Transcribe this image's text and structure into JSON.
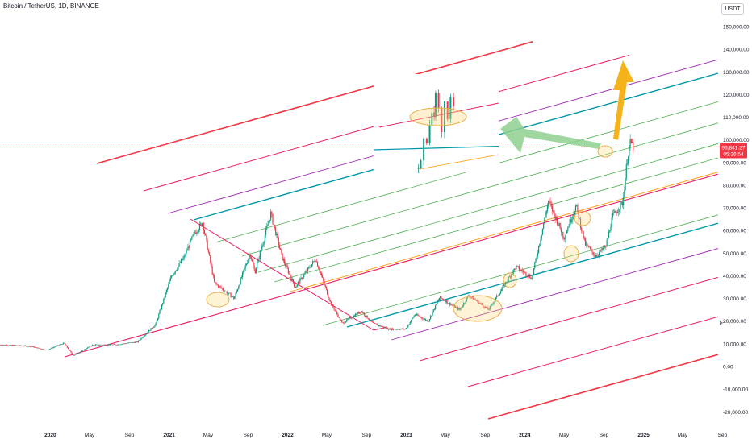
{
  "header": {
    "symbol_title": "Bitcoin / TetherUS, 1D, BINANCE",
    "currency": "USDT"
  },
  "price_tag": {
    "price": "96,841.27",
    "countdown": "05:36:54",
    "color": "#f23645"
  },
  "chart_data": {
    "type": "candlestick",
    "title": "Bitcoin / TetherUS, 1D, BINANCE",
    "xlabel": "",
    "ylabel": "",
    "ylim": [
      -25000,
      160000
    ],
    "xlim": [
      "2019-07-30",
      "2025-12-01"
    ],
    "current_price": 96841.27,
    "y_ticks": [
      {
        "value": -20000,
        "label": "-20,000.00"
      },
      {
        "value": -10000,
        "label": "-10,000.00"
      },
      {
        "value": 0,
        "label": "0.00"
      },
      {
        "value": 10000,
        "label": "10,000.00"
      },
      {
        "value": 20000,
        "label": "20,000.00"
      },
      {
        "value": 30000,
        "label": "30,000.00"
      },
      {
        "value": 40000,
        "label": "40,000.00"
      },
      {
        "value": 50000,
        "label": "50,000.00"
      },
      {
        "value": 60000,
        "label": "60,000.00"
      },
      {
        "value": 70000,
        "label": "70,000.00"
      },
      {
        "value": 80000,
        "label": "80,000.00"
      },
      {
        "value": 90000,
        "label": "90,000.00"
      },
      {
        "value": 100000,
        "label": "100,000.00"
      },
      {
        "value": 110000,
        "label": "110,000.00"
      },
      {
        "value": 120000,
        "label": "120,000.00"
      },
      {
        "value": 130000,
        "label": "130,000.00"
      },
      {
        "value": 140000,
        "label": "140,000.00"
      },
      {
        "value": 150000,
        "label": "150,000.00"
      }
    ],
    "x_ticks": [
      {
        "date": "2020-01-01",
        "label": "2020",
        "bold": true
      },
      {
        "date": "2020-05-01",
        "label": "May",
        "bold": false
      },
      {
        "date": "2020-09-01",
        "label": "Sep",
        "bold": false
      },
      {
        "date": "2021-01-01",
        "label": "2021",
        "bold": true
      },
      {
        "date": "2021-05-01",
        "label": "May",
        "bold": false
      },
      {
        "date": "2021-09-01",
        "label": "Sep",
        "bold": false
      },
      {
        "date": "2022-01-01",
        "label": "2022",
        "bold": true
      },
      {
        "date": "2022-05-01",
        "label": "May",
        "bold": false
      },
      {
        "date": "2022-09-01",
        "label": "Sep",
        "bold": false
      },
      {
        "date": "2023-01-01",
        "label": "2023",
        "bold": true
      },
      {
        "date": "2023-05-01",
        "label": "May",
        "bold": false
      },
      {
        "date": "2023-09-01",
        "label": "Sep",
        "bold": false
      },
      {
        "date": "2024-01-01",
        "label": "2024",
        "bold": true
      },
      {
        "date": "2024-05-01",
        "label": "May",
        "bold": false
      },
      {
        "date": "2024-09-01",
        "label": "Sep",
        "bold": false
      },
      {
        "date": "2025-01-01",
        "label": "2025",
        "bold": true
      },
      {
        "date": "2025-05-01",
        "label": "May",
        "bold": false
      },
      {
        "date": "2025-09-01",
        "label": "Sep",
        "bold": false
      }
    ],
    "price_path": [
      [
        "2019-07-30",
        9600
      ],
      [
        "2019-09-15",
        9300
      ],
      [
        "2019-11-01",
        8900
      ],
      [
        "2019-12-20",
        7200
      ],
      [
        "2020-02-12",
        10300
      ],
      [
        "2020-03-12",
        4800
      ],
      [
        "2020-05-10",
        9500
      ],
      [
        "2020-07-25",
        9700
      ],
      [
        "2020-09-25",
        10800
      ],
      [
        "2020-11-20",
        18500
      ],
      [
        "2021-01-08",
        40000
      ],
      [
        "2021-02-15",
        48000
      ],
      [
        "2021-03-20",
        59000
      ],
      [
        "2021-04-14",
        63500
      ],
      [
        "2021-05-20",
        37000
      ],
      [
        "2021-07-20",
        30000
      ],
      [
        "2021-09-07",
        50000
      ],
      [
        "2021-09-22",
        41500
      ],
      [
        "2021-11-10",
        67500
      ],
      [
        "2021-12-15",
        48000
      ],
      [
        "2022-01-24",
        35000
      ],
      [
        "2022-03-28",
        47500
      ],
      [
        "2022-05-12",
        28500
      ],
      [
        "2022-06-18",
        19000
      ],
      [
        "2022-08-15",
        24500
      ],
      [
        "2022-09-20",
        19000
      ],
      [
        "2022-11-09",
        16500
      ],
      [
        "2022-12-30",
        16500
      ],
      [
        "2023-01-28",
        23000
      ],
      [
        "2023-03-10",
        20000
      ],
      [
        "2023-04-14",
        30500
      ],
      [
        "2023-06-15",
        25000
      ],
      [
        "2023-07-13",
        31500
      ],
      [
        "2023-09-11",
        25000
      ],
      [
        "2023-10-24",
        34500
      ],
      [
        "2023-12-05",
        44000
      ],
      [
        "2024-01-23",
        39000
      ],
      [
        "2024-03-14",
        73000
      ],
      [
        "2024-05-01",
        57000
      ],
      [
        "2024-06-07",
        71000
      ],
      [
        "2024-07-05",
        54000
      ],
      [
        "2024-08-05",
        49000
      ],
      [
        "2024-09-06",
        52500
      ],
      [
        "2024-09-27",
        66000
      ],
      [
        "2024-10-29",
        72500
      ],
      [
        "2024-11-13",
        93000
      ],
      [
        "2024-11-22",
        99000
      ],
      [
        "2024-12-02",
        96841
      ]
    ],
    "zoom_inset": {
      "ylim": [
        86000,
        123000
      ],
      "xlim": [
        "2024-11-01",
        "2025-01-05"
      ],
      "price_path": [
        [
          "2024-11-05",
          86500
        ],
        [
          "2024-11-08",
          90000
        ],
        [
          "2024-11-12",
          100000
        ],
        [
          "2024-11-16",
          98000
        ],
        [
          "2024-11-20",
          106000
        ],
        [
          "2024-11-23",
          112000
        ],
        [
          "2024-11-26",
          110000
        ],
        [
          "2024-11-28",
          121000
        ],
        [
          "2024-12-02",
          114000
        ],
        [
          "2024-12-06",
          103000
        ],
        [
          "2024-12-10",
          117000
        ],
        [
          "2024-12-14",
          109000
        ],
        [
          "2024-12-18",
          119000
        ],
        [
          "2024-12-22",
          115000
        ]
      ]
    },
    "annotations": [
      {
        "type": "parallel-channel-lines",
        "note": "orange/green/teal/purple/red fan lines"
      },
      {
        "type": "green-arrow",
        "direction": "left"
      },
      {
        "type": "orange-arrow",
        "direction": "up"
      },
      {
        "type": "ellipse-highlights",
        "count": 7
      }
    ],
    "colors": {
      "up": "#089981",
      "down": "#f23645",
      "channel_red": "#f23645",
      "channel_magenta": "#e91e63",
      "channel_purple": "#9c27b0",
      "channel_teal": "#0097a7",
      "channel_green": "#4caf50",
      "channel_orange": "#ff9800"
    }
  }
}
